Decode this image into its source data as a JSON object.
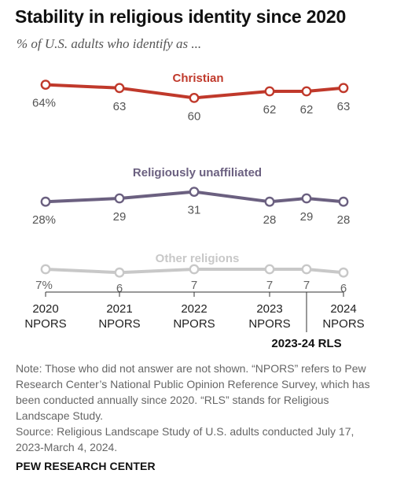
{
  "title": "Stability in religious identity since 2020",
  "subtitle": "% of U.S. adults who identify as ...",
  "chart_data": {
    "type": "line",
    "x": [
      "2020",
      "2021",
      "2022",
      "2023",
      "2023-24",
      "2024"
    ],
    "tick_labels": [
      {
        "year": "2020",
        "survey": "NPORS"
      },
      {
        "year": "2021",
        "survey": "NPORS"
      },
      {
        "year": "2022",
        "survey": "NPORS"
      },
      {
        "year": "2023",
        "survey": "NPORS"
      },
      {
        "year": "2024",
        "survey": "NPORS"
      }
    ],
    "rls_label": "2023-24 RLS",
    "series": [
      {
        "name": "Christian",
        "values": [
          64,
          63,
          60,
          62,
          62,
          63
        ],
        "labels": [
          "64%",
          "63",
          "60",
          "62",
          "62",
          "63"
        ],
        "color": "#c0392b"
      },
      {
        "name": "Religiously unaffiliated",
        "values": [
          28,
          29,
          31,
          28,
          29,
          28
        ],
        "labels": [
          "28%",
          "29",
          "31",
          "28",
          "29",
          "28"
        ],
        "color": "#6b6080"
      },
      {
        "name": "Other religions",
        "values": [
          7,
          6,
          7,
          7,
          7,
          6
        ],
        "labels": [
          "7%",
          "6",
          "7",
          "7",
          "7",
          "6"
        ],
        "color": "#c8c8c8"
      }
    ],
    "grid": false,
    "legend": "inline"
  },
  "note": "Note: Those who did not answer are not shown. “NPORS” refers to Pew Research Center’s National Public Opinion Reference Survey, which has been conducted annually since 2020. “RLS” stands for Religious Landscape Study.",
  "source": "Source: Religious Landscape Study of U.S. adults conducted July 17, 2023-March 4, 2024.",
  "credit": "PEW RESEARCH CENTER"
}
